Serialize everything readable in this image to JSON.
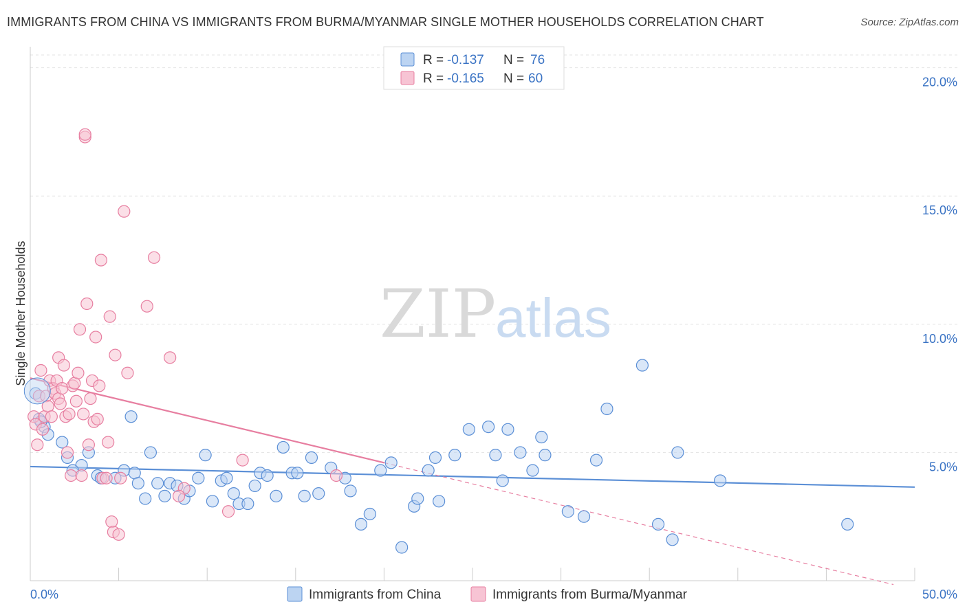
{
  "title": "IMMIGRANTS FROM CHINA VS IMMIGRANTS FROM BURMA/MYANMAR SINGLE MOTHER HOUSEHOLDS CORRELATION CHART",
  "source": "Source: ZipAtlas.com",
  "watermark": {
    "zip": "ZIP",
    "atlas": "atlas"
  },
  "legend": {
    "r_label": "R =",
    "n_label": "N =",
    "rows": [
      {
        "r": "-0.137",
        "n": "76",
        "color": "#5b8fd6",
        "fill": "#bcd4f2"
      },
      {
        "r": "-0.165",
        "n": "60",
        "color": "#e77ea0",
        "fill": "#f7c4d4"
      }
    ]
  },
  "chart_data": {
    "type": "scatter",
    "xlabel": "",
    "ylabel": "Single Mother Households",
    "xlim": [
      0,
      50
    ],
    "ylim": [
      0,
      20.5
    ],
    "x_tick_labels": [
      "0.0%",
      "50.0%"
    ],
    "y_ticks": [
      {
        "value": 5,
        "label": "5.0%"
      },
      {
        "value": 10,
        "label": "10.0%"
      },
      {
        "value": 15,
        "label": "15.0%"
      },
      {
        "value": 20,
        "label": "20.0%"
      }
    ],
    "grid": true,
    "legend_position": "top-center",
    "series": [
      {
        "name": "Immigrants from China",
        "color": "#5b8fd6",
        "fill": "#bcd4f2",
        "trend": {
          "x0": 0,
          "y0": 4.45,
          "x1": 50,
          "y1": 3.65,
          "style": "solid"
        },
        "points": [
          [
            0.3,
            7.3
          ],
          [
            0.5,
            6.3
          ],
          [
            0.8,
            6.0
          ],
          [
            1.0,
            5.7
          ],
          [
            1.8,
            5.4
          ],
          [
            2.1,
            4.8
          ],
          [
            2.9,
            4.5
          ],
          [
            2.4,
            4.3
          ],
          [
            3.3,
            5.0
          ],
          [
            3.8,
            4.1
          ],
          [
            4.0,
            4.0
          ],
          [
            4.8,
            4.0
          ],
          [
            5.3,
            4.3
          ],
          [
            5.7,
            6.4
          ],
          [
            5.9,
            4.2
          ],
          [
            6.1,
            3.8
          ],
          [
            6.5,
            3.2
          ],
          [
            6.8,
            5.0
          ],
          [
            7.2,
            3.8
          ],
          [
            7.6,
            3.3
          ],
          [
            7.9,
            3.8
          ],
          [
            8.3,
            3.7
          ],
          [
            8.7,
            3.2
          ],
          [
            9.0,
            3.5
          ],
          [
            9.5,
            4.0
          ],
          [
            9.9,
            4.9
          ],
          [
            10.3,
            3.1
          ],
          [
            10.8,
            3.9
          ],
          [
            11.1,
            4.0
          ],
          [
            11.5,
            3.4
          ],
          [
            11.8,
            3.0
          ],
          [
            12.3,
            3.0
          ],
          [
            12.7,
            3.7
          ],
          [
            13.0,
            4.2
          ],
          [
            13.4,
            4.1
          ],
          [
            13.9,
            3.3
          ],
          [
            14.3,
            5.2
          ],
          [
            14.8,
            4.2
          ],
          [
            15.1,
            4.2
          ],
          [
            15.5,
            3.3
          ],
          [
            15.9,
            4.8
          ],
          [
            16.3,
            3.4
          ],
          [
            17.0,
            4.4
          ],
          [
            17.8,
            4.0
          ],
          [
            18.1,
            3.5
          ],
          [
            18.7,
            2.2
          ],
          [
            19.2,
            2.6
          ],
          [
            19.8,
            4.3
          ],
          [
            20.4,
            4.6
          ],
          [
            21.0,
            1.3
          ],
          [
            21.7,
            2.9
          ],
          [
            21.9,
            3.2
          ],
          [
            22.5,
            4.3
          ],
          [
            22.9,
            4.8
          ],
          [
            23.1,
            3.1
          ],
          [
            24.0,
            4.9
          ],
          [
            24.8,
            5.9
          ],
          [
            25.9,
            6.0
          ],
          [
            26.3,
            4.9
          ],
          [
            26.7,
            3.9
          ],
          [
            27.0,
            5.9
          ],
          [
            27.7,
            5.0
          ],
          [
            28.4,
            4.3
          ],
          [
            28.9,
            5.6
          ],
          [
            29.1,
            4.9
          ],
          [
            30.4,
            2.7
          ],
          [
            31.3,
            2.5
          ],
          [
            32.0,
            4.7
          ],
          [
            32.6,
            6.7
          ],
          [
            34.6,
            8.4
          ],
          [
            35.5,
            2.2
          ],
          [
            36.3,
            1.6
          ],
          [
            36.6,
            5.0
          ],
          [
            39.0,
            3.9
          ],
          [
            46.2,
            2.2
          ],
          [
            0.6,
            6.2
          ]
        ]
      },
      {
        "name": "Immigrants from Burma/Myanmar",
        "color": "#e77ea0",
        "fill": "#f7c4d4",
        "trend": {
          "x0": 0,
          "y0": 7.9,
          "x1": 20,
          "y1": 4.6,
          "style": "solid",
          "dashed_to_x": 48.8,
          "dashed_to_y": -0.15
        },
        "points": [
          [
            0.2,
            6.4
          ],
          [
            0.3,
            6.1
          ],
          [
            0.4,
            5.3
          ],
          [
            0.5,
            7.2
          ],
          [
            0.6,
            8.2
          ],
          [
            0.7,
            5.9
          ],
          [
            0.8,
            6.4
          ],
          [
            0.9,
            7.2
          ],
          [
            1.0,
            6.8
          ],
          [
            1.1,
            7.8
          ],
          [
            1.2,
            6.4
          ],
          [
            1.3,
            7.5
          ],
          [
            1.4,
            7.3
          ],
          [
            1.5,
            7.8
          ],
          [
            1.6,
            7.1
          ],
          [
            1.6,
            8.7
          ],
          [
            1.7,
            6.9
          ],
          [
            1.8,
            7.5
          ],
          [
            1.9,
            8.4
          ],
          [
            2.0,
            6.4
          ],
          [
            2.1,
            5.0
          ],
          [
            2.2,
            6.5
          ],
          [
            2.3,
            4.1
          ],
          [
            2.4,
            7.6
          ],
          [
            2.5,
            7.7
          ],
          [
            2.6,
            7.0
          ],
          [
            2.7,
            8.1
          ],
          [
            2.8,
            9.8
          ],
          [
            2.9,
            4.1
          ],
          [
            3.0,
            6.5
          ],
          [
            3.1,
            17.3
          ],
          [
            3.2,
            10.8
          ],
          [
            3.3,
            5.3
          ],
          [
            3.4,
            7.1
          ],
          [
            3.5,
            7.8
          ],
          [
            3.6,
            6.2
          ],
          [
            3.7,
            9.5
          ],
          [
            3.8,
            6.3
          ],
          [
            3.9,
            7.6
          ],
          [
            4.0,
            12.5
          ],
          [
            4.1,
            4.0
          ],
          [
            4.3,
            4.0
          ],
          [
            4.4,
            5.4
          ],
          [
            4.5,
            10.3
          ],
          [
            4.6,
            2.3
          ],
          [
            4.7,
            1.9
          ],
          [
            4.8,
            8.8
          ],
          [
            5.0,
            1.8
          ],
          [
            5.1,
            4.0
          ],
          [
            5.3,
            14.4
          ],
          [
            5.5,
            8.1
          ],
          [
            7.0,
            12.6
          ],
          [
            6.6,
            10.7
          ],
          [
            7.9,
            8.7
          ],
          [
            8.7,
            3.6
          ],
          [
            8.4,
            3.3
          ],
          [
            11.2,
            2.7
          ],
          [
            12.0,
            4.7
          ],
          [
            17.3,
            4.1
          ],
          [
            3.1,
            17.4
          ]
        ]
      }
    ]
  },
  "bottom_legend": [
    {
      "label": "Immigrants from China",
      "fill": "#bcd4f2",
      "color": "#5b8fd6"
    },
    {
      "label": "Immigrants from Burma/Myanmar",
      "fill": "#f7c4d4",
      "color": "#e77ea0"
    }
  ]
}
